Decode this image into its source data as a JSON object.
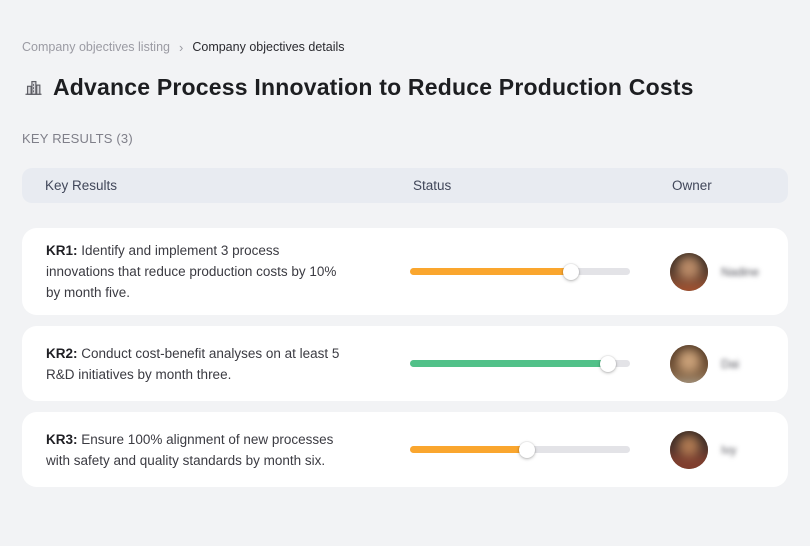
{
  "breadcrumb": {
    "separator": "›",
    "items": [
      {
        "label": "Company objectives listing"
      },
      {
        "label": "Company objectives details"
      }
    ]
  },
  "header": {
    "icon": "buildings-icon",
    "title": "Advance Process Innovation to Reduce Production Costs"
  },
  "section": {
    "label": "KEY RESULTS (3)"
  },
  "table": {
    "columns": {
      "key_results": "Key Results",
      "status": "Status",
      "owner": "Owner"
    },
    "rows": [
      {
        "kr_label": "KR1:",
        "kr_text": "Identify and implement 3 process\ninnovations that reduce production costs by 10%\nby month five.",
        "progress_percent": 73,
        "progress_color": "#FAA62E",
        "owner_name": "Nadine"
      },
      {
        "kr_label": "KR2:",
        "kr_text": "Conduct cost-benefit analyses on at least 5\nR&D initiatives by month three.",
        "progress_percent": 90,
        "progress_color": "#52C189",
        "owner_name": "Dai"
      },
      {
        "kr_label": "KR3:",
        "kr_text": "Ensure 100% alignment of new processes\nwith safety and quality standards by month six.",
        "progress_percent": 53,
        "progress_color": "#FAA62E",
        "owner_name": "Ivy"
      }
    ]
  },
  "colors": {
    "page_background": "#F2F3F5",
    "card_background": "#FFFFFF",
    "table_header_background": "#E8EBF1",
    "progress_track": "#E3E3E7",
    "progress_orange": "#FAA62E",
    "progress_green": "#52C189"
  }
}
